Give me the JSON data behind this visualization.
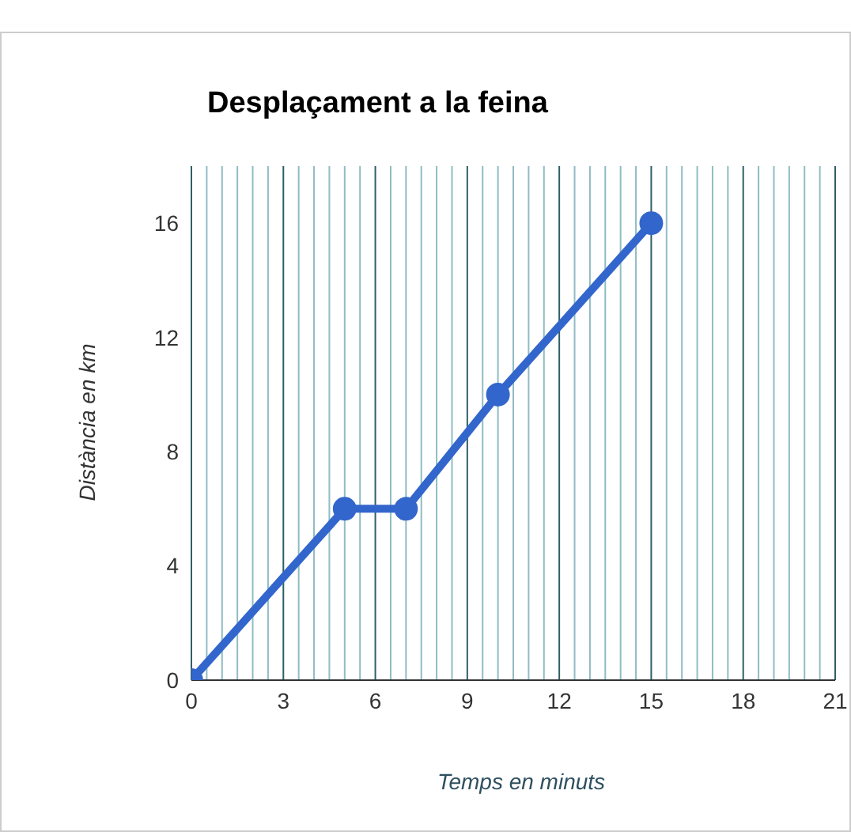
{
  "chart_data": {
    "type": "line",
    "title": "Desplaçament a la feina",
    "xlabel": "Temps en minuts",
    "ylabel": "Distància en km",
    "x": [
      0,
      5,
      7,
      10,
      15
    ],
    "series": [
      {
        "color": "#3366cc",
        "values": [
          0,
          6,
          6,
          10,
          16
        ]
      }
    ],
    "xlim": [
      0,
      21
    ],
    "xticks": [
      0,
      {
        "value": 0.5,
        "label": null
      },
      {
        "value": 1,
        "label": null
      },
      {
        "value": 1.5,
        "label": null
      },
      {
        "value": 2,
        "label": null
      },
      {
        "value": 2.5,
        "label": null
      },
      3,
      {
        "value": 3.5,
        "label": null
      },
      {
        "value": 4,
        "label": null
      },
      {
        "value": 4.5,
        "label": null
      },
      {
        "value": 5,
        "label": null
      },
      {
        "value": 5.5,
        "label": null
      },
      6,
      {
        "value": 6.5,
        "label": null
      },
      {
        "value": 7,
        "label": null
      },
      {
        "value": 7.5,
        "label": null
      },
      {
        "value": 8,
        "label": null
      },
      {
        "value": 8.5,
        "label": null
      },
      9,
      {
        "value": 9.5,
        "label": null
      },
      {
        "value": 10,
        "label": null
      },
      {
        "value": 10.5,
        "label": null
      },
      {
        "value": 11,
        "label": null
      },
      {
        "value": 11.5,
        "label": null
      },
      12,
      {
        "value": 12.5,
        "label": null
      },
      {
        "value": 13,
        "label": null
      },
      {
        "value": 13.5,
        "label": null
      },
      {
        "value": 14,
        "label": null
      },
      {
        "value": 14.5,
        "label": null
      },
      15,
      {
        "value": 15.5,
        "label": null
      },
      {
        "value": 16,
        "label": null
      },
      {
        "value": 16.5,
        "label": null
      },
      {
        "value": 17,
        "label": null
      },
      {
        "value": 17.5,
        "label": null
      },
      18,
      {
        "value": 18.5,
        "label": null
      },
      {
        "value": 19,
        "label": null
      },
      {
        "value": 19.5,
        "label": null
      },
      {
        "value": 20,
        "label": null
      },
      {
        "value": 20.5,
        "label": null
      },
      21
    ],
    "ylim": [
      0,
      18
    ],
    "yticks": [
      0,
      4,
      8,
      12,
      16
    ],
    "grid": "x",
    "marker": "circle",
    "line_style": "solid",
    "legend": false
  }
}
